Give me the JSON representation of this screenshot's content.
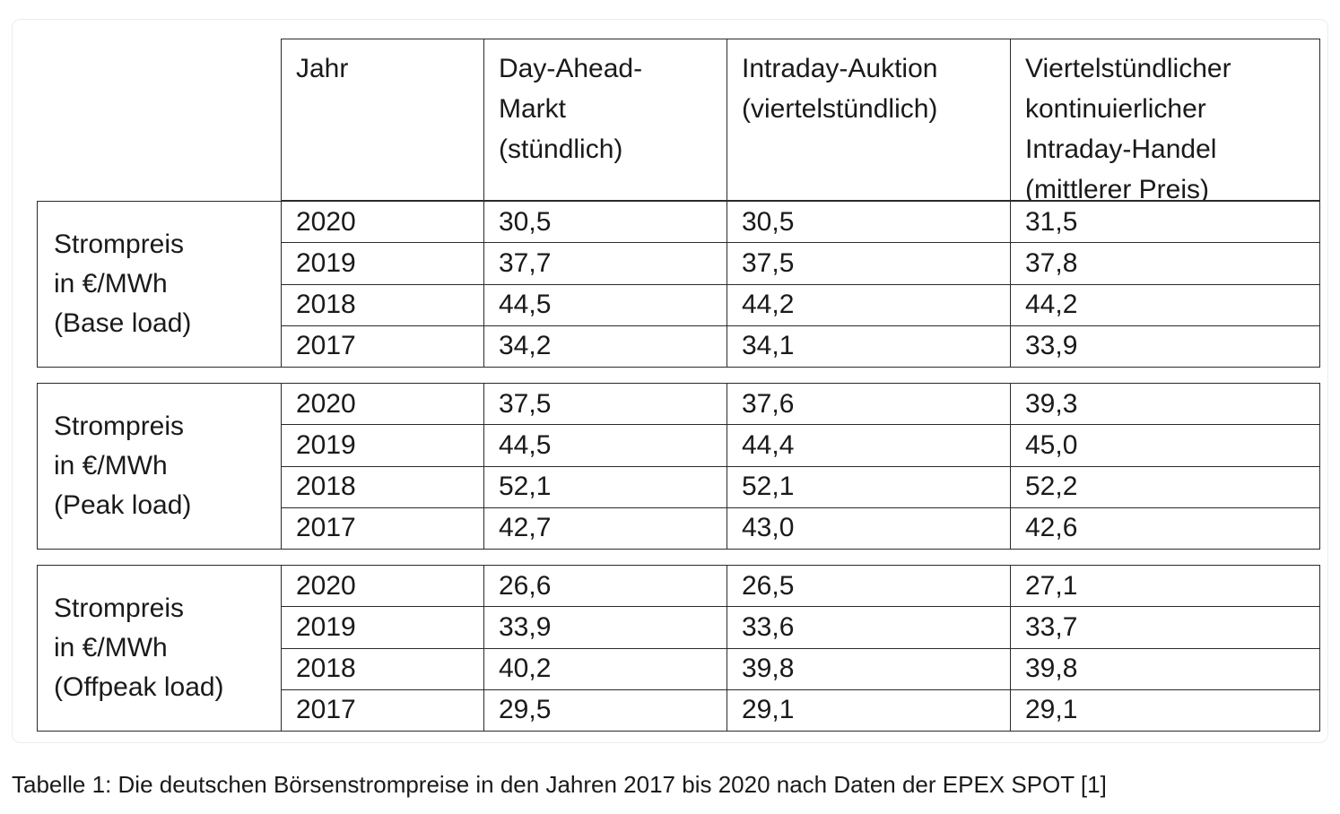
{
  "table": {
    "headers": [
      "Jahr",
      "Day-Ahead-\nMarkt\n(stündlich)",
      "Intraday-Auktion\n(viertelstündlich)",
      "Viertelstündlicher\nkontinuierlicher\nIntraday-Handel\n(mittlerer Preis)"
    ],
    "groups": [
      {
        "label": "Strompreis\nin €/MWh\n(Base load)",
        "rows": [
          [
            "2020",
            "30,5",
            "30,5",
            "31,5"
          ],
          [
            "2019",
            "37,7",
            "37,5",
            "37,8"
          ],
          [
            "2018",
            "44,5",
            "44,2",
            "44,2"
          ],
          [
            "2017",
            "34,2",
            "34,1",
            "33,9"
          ]
        ]
      },
      {
        "label": "Strompreis\nin €/MWh\n(Peak load)",
        "rows": [
          [
            "2020",
            "37,5",
            "37,6",
            "39,3"
          ],
          [
            "2019",
            "44,5",
            "44,4",
            "45,0"
          ],
          [
            "2018",
            "52,1",
            "52,1",
            "52,2"
          ],
          [
            "2017",
            "42,7",
            "43,0",
            "42,6"
          ]
        ]
      },
      {
        "label": "Strompreis\nin €/MWh\n(Offpeak load)",
        "rows": [
          [
            "2020",
            "26,6",
            "26,5",
            "27,1"
          ],
          [
            "2019",
            "33,9",
            "33,6",
            "33,7"
          ],
          [
            "2018",
            "40,2",
            "39,8",
            "39,8"
          ],
          [
            "2017",
            "29,5",
            "29,1",
            "29,1"
          ]
        ]
      }
    ]
  },
  "caption": "Tabelle 1: Die deutschen Börsenstrompreise in den Jahren 2017 bis 2020 nach Daten der EPEX SPOT [1]"
}
